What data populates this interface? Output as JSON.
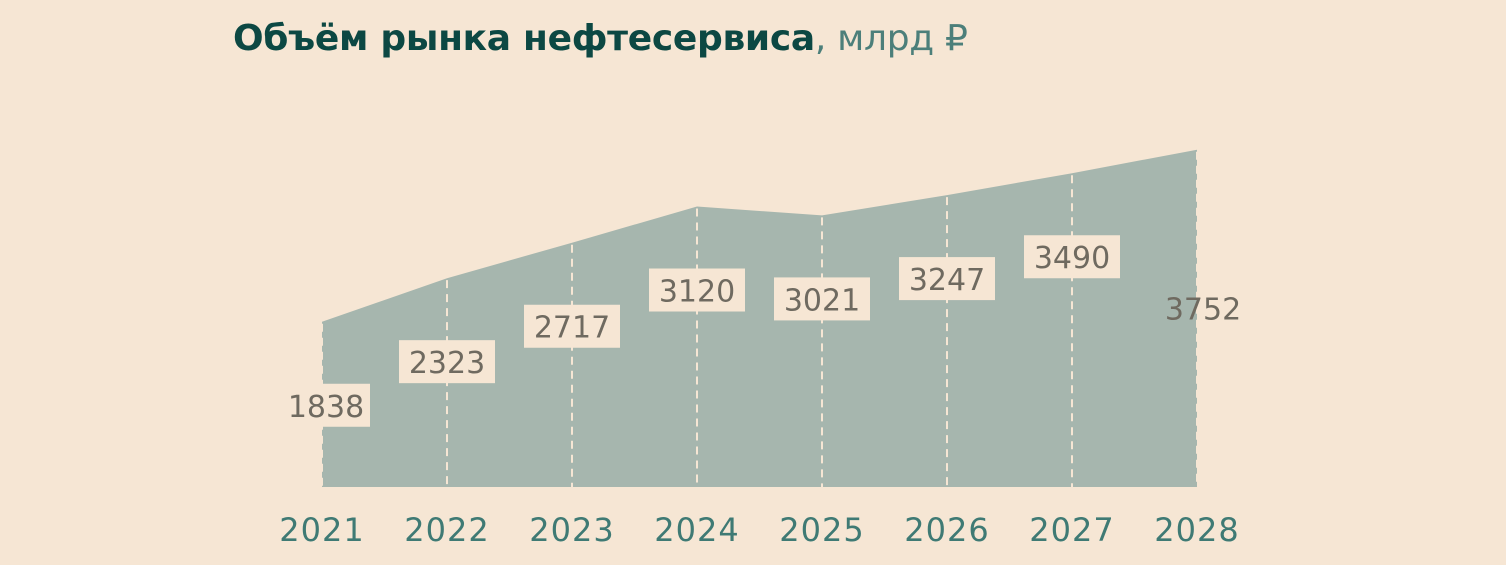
{
  "title": {
    "main": "Объём рынка нефтесервиса",
    "unit": ", млрд ₽"
  },
  "colors": {
    "background": "#f6e6d4",
    "area": "#a6b6ae",
    "label_box": "#f6e6d4",
    "label_text": "#6f6a60",
    "year_text": "#3f7a74",
    "title_text": "#0c4843",
    "divider": "#f6e6d4"
  },
  "chart_data": {
    "type": "area",
    "title": "Объём рынка нефтесервиса, млрд ₽",
    "x": [
      "2021",
      "2022",
      "2023",
      "2024",
      "2025",
      "2026",
      "2027",
      "2028"
    ],
    "series": [
      {
        "values": [
          1838,
          2323,
          2717,
          3120,
          3021,
          3247,
          3490,
          3752
        ],
        "labels": [
          "1838",
          "2323",
          "2717",
          "3120",
          "3021",
          "3247",
          "3490",
          "3752"
        ]
      }
    ],
    "xlabel": "",
    "ylabel": "",
    "grid": "dashed vertical dividers",
    "legend": "none"
  }
}
